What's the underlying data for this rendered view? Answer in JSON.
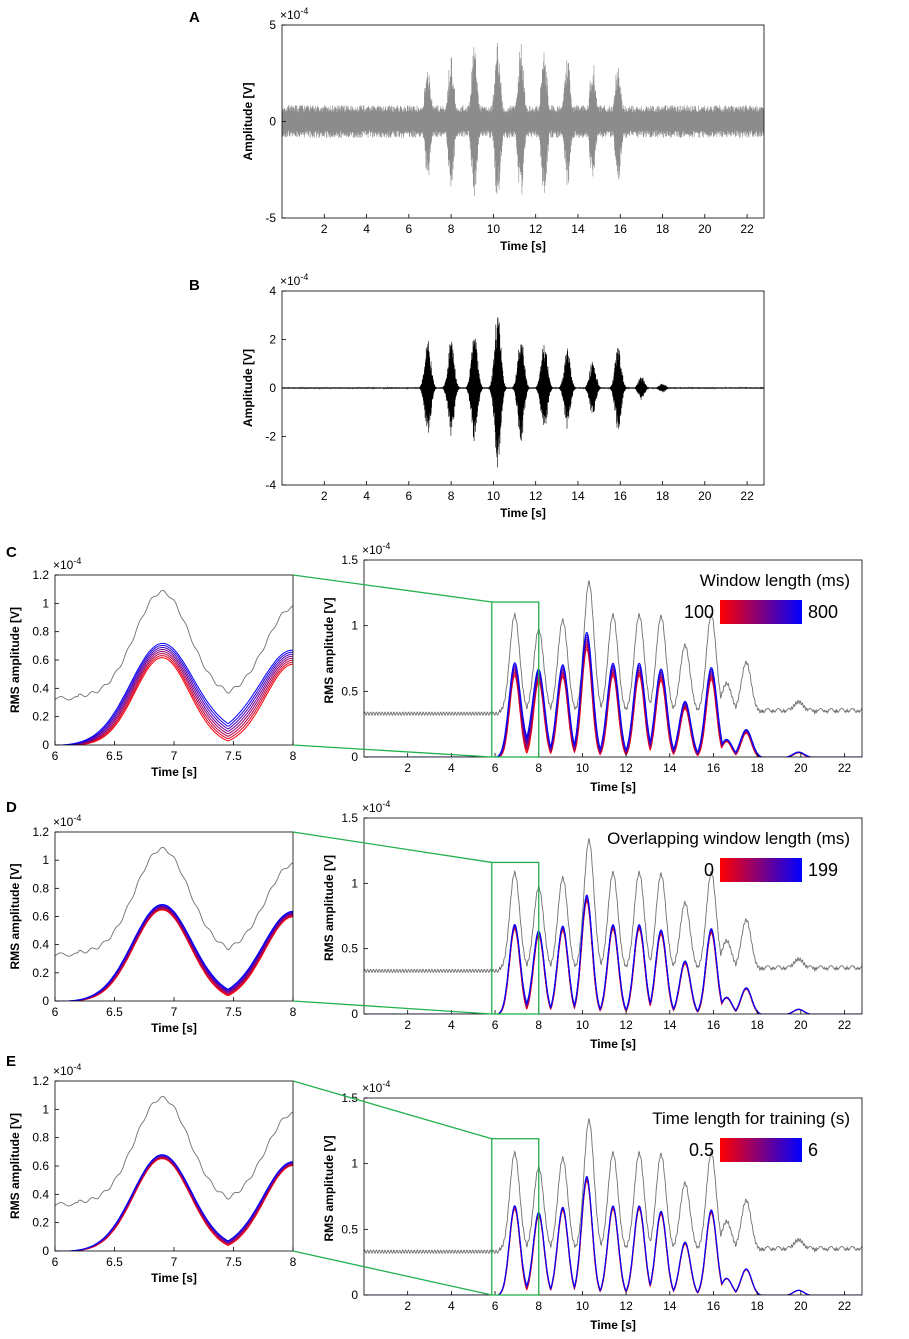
{
  "chart_data": [
    {
      "id": "A",
      "panel_label": "A",
      "type": "line",
      "title": "",
      "xlabel": "Time [s]",
      "ylabel": "Amplitude [V]",
      "exponent": "×10",
      "exponent_power": "-4",
      "xlim": [
        0,
        22.8
      ],
      "ylim": [
        -5,
        5
      ],
      "xticks": [
        2,
        4,
        6,
        8,
        10,
        12,
        14,
        16,
        18,
        20,
        22
      ],
      "yticks": [
        -5,
        0,
        5
      ],
      "ytick_labels": [
        "-5",
        "0",
        "5"
      ],
      "color": "#8c8c8c",
      "noise_floor": 0.85,
      "bursts": [
        {
          "t": 6.9,
          "amp": 3.1
        },
        {
          "t": 8.0,
          "amp": 3.5
        },
        {
          "t": 9.1,
          "amp": 3.9
        },
        {
          "t": 10.2,
          "amp": 4.3
        },
        {
          "t": 11.3,
          "amp": 4.1
        },
        {
          "t": 12.4,
          "amp": 3.9
        },
        {
          "t": 13.5,
          "amp": 3.4
        },
        {
          "t": 14.7,
          "amp": 3.2
        },
        {
          "t": 15.9,
          "amp": 3.3
        }
      ]
    },
    {
      "id": "B",
      "panel_label": "B",
      "type": "line",
      "title": "",
      "xlabel": "Time [s]",
      "ylabel": "Amplitude [V]",
      "exponent": "×10",
      "exponent_power": "-4",
      "xlim": [
        0,
        22.8
      ],
      "ylim": [
        -4,
        4
      ],
      "xticks": [
        2,
        4,
        6,
        8,
        10,
        12,
        14,
        16,
        18,
        20,
        22
      ],
      "yticks": [
        -4,
        -2,
        0,
        2,
        4
      ],
      "ytick_labels": [
        "-4",
        "-2",
        "0",
        "2",
        "4"
      ],
      "color": "#000000",
      "noise_floor": 0.03,
      "bursts": [
        {
          "t": 6.9,
          "amp": 2.0
        },
        {
          "t": 8.0,
          "amp": 2.0
        },
        {
          "t": 9.1,
          "amp": 2.3
        },
        {
          "t": 10.2,
          "amp": 3.3
        },
        {
          "t": 11.3,
          "amp": 2.3
        },
        {
          "t": 12.4,
          "amp": 2.0
        },
        {
          "t": 13.5,
          "amp": 1.7
        },
        {
          "t": 14.7,
          "amp": 1.2
        },
        {
          "t": 15.9,
          "amp": 1.8
        },
        {
          "t": 17.0,
          "amp": 0.5
        },
        {
          "t": 18.0,
          "amp": 0.2
        }
      ]
    },
    {
      "id": "C",
      "panel_label": "C",
      "type": "line",
      "xlabel": "Time [s]",
      "ylabel": "RMS amplitude [V]",
      "exponent": "×10",
      "exponent_power": "-4",
      "legend_title": "Window length (ms)",
      "legend_min": "100",
      "legend_max": "800",
      "color_scale": [
        "#ff0000",
        "#0000ff"
      ],
      "series_count": 8,
      "spread": 0.9,
      "zoom": {
        "xlim": [
          6,
          8
        ],
        "ylim": [
          0,
          1.2
        ],
        "xticks": [
          6,
          6.5,
          7,
          7.5,
          8
        ],
        "xtick_labels": [
          "6",
          "6.5",
          "7",
          "7.5",
          "8"
        ],
        "yticks": [
          0,
          0.2,
          0.4,
          0.6,
          0.8,
          1,
          1.2
        ],
        "ytick_labels": [
          "0",
          "0.2",
          "0.4",
          "0.6",
          "0.8",
          "1",
          "1.2"
        ]
      },
      "main": {
        "xlim": [
          0,
          22.8
        ],
        "ylim": [
          0,
          1.5
        ],
        "xticks": [
          2,
          4,
          6,
          8,
          10,
          12,
          14,
          16,
          18,
          20,
          22
        ],
        "yticks": [
          0,
          0.5,
          1,
          1.5
        ],
        "ytick_labels": [
          "0",
          "0.5",
          "1",
          "1.5"
        ],
        "zoom_box": {
          "x0": 5.85,
          "x1": 8.0,
          "y0": 0,
          "y1": 1.18
        }
      }
    },
    {
      "id": "D",
      "panel_label": "D",
      "type": "line",
      "xlabel": "Time [s]",
      "ylabel": "RMS amplitude [V]",
      "exponent": "×10",
      "exponent_power": "-4",
      "legend_title": "Overlapping window length (ms)",
      "legend_min": "0",
      "legend_max": "199",
      "color_scale": [
        "#ff0000",
        "#0000ff"
      ],
      "series_count": 8,
      "spread": 0.35,
      "zoom": {
        "xlim": [
          6,
          8
        ],
        "ylim": [
          0,
          1.2
        ],
        "xticks": [
          6,
          6.5,
          7,
          7.5,
          8
        ],
        "xtick_labels": [
          "6",
          "6.5",
          "7",
          "7.5",
          "8"
        ],
        "yticks": [
          0,
          0.2,
          0.4,
          0.6,
          0.8,
          1,
          1.2
        ],
        "ytick_labels": [
          "0",
          "0.2",
          "0.4",
          "0.6",
          "0.8",
          "1",
          "1.2"
        ]
      },
      "main": {
        "xlim": [
          0,
          22.8
        ],
        "ylim": [
          0,
          1.5
        ],
        "xticks": [
          2,
          4,
          6,
          8,
          10,
          12,
          14,
          16,
          18,
          20,
          22
        ],
        "yticks": [
          0,
          0.5,
          1,
          1.5
        ],
        "ytick_labels": [
          "0",
          "0.5",
          "1",
          "1.5"
        ],
        "zoom_box": {
          "x0": 5.85,
          "x1": 8.0,
          "y0": 0,
          "y1": 1.16
        }
      }
    },
    {
      "id": "E",
      "panel_label": "E",
      "type": "line",
      "xlabel": "Time [s]",
      "ylabel": "RMS amplitude [V]",
      "exponent": "×10",
      "exponent_power": "-4",
      "legend_title": "Time length for training (s)",
      "legend_min": "0.5",
      "legend_max": "6",
      "color_scale": [
        "#ff0000",
        "#0000ff"
      ],
      "series_count": 6,
      "spread": 0.25,
      "zoom": {
        "xlim": [
          6,
          8
        ],
        "ylim": [
          0,
          1.2
        ],
        "xticks": [
          6,
          6.5,
          7,
          7.5,
          8
        ],
        "xtick_labels": [
          "6",
          "6.5",
          "7",
          "7.5",
          "8"
        ],
        "yticks": [
          0,
          0.2,
          0.4,
          0.6,
          0.8,
          1,
          1.2
        ],
        "ytick_labels": [
          "0",
          "0.2",
          "0.4",
          "0.6",
          "0.8",
          "1",
          "1.2"
        ]
      },
      "main": {
        "xlim": [
          0,
          22.8
        ],
        "ylim": [
          0,
          1.5
        ],
        "xticks": [
          2,
          4,
          6,
          8,
          10,
          12,
          14,
          16,
          18,
          20,
          22
        ],
        "yticks": [
          0,
          0.5,
          1,
          1.5
        ],
        "ytick_labels": [
          "0",
          "0.5",
          "1",
          "1.5"
        ],
        "zoom_box": {
          "x0": 5.85,
          "x1": 8.0,
          "y0": 0,
          "y1": 1.19
        }
      }
    }
  ],
  "rms_reference": {
    "color": "#707070",
    "baseline": 0.34,
    "peaks": [
      {
        "t": 6.9,
        "v": 1.08
      },
      {
        "t": 8.0,
        "v": 0.97
      },
      {
        "t": 9.1,
        "v": 1.04
      },
      {
        "t": 10.3,
        "v": 1.33
      },
      {
        "t": 11.4,
        "v": 1.08
      },
      {
        "t": 12.6,
        "v": 1.08
      },
      {
        "t": 13.6,
        "v": 1.07
      },
      {
        "t": 14.7,
        "v": 0.85
      },
      {
        "t": 15.9,
        "v": 1.08
      },
      {
        "t": 16.6,
        "v": 0.56
      },
      {
        "t": 17.5,
        "v": 0.72
      },
      {
        "t": 19.9,
        "v": 0.42
      }
    ]
  },
  "rms_estimate": {
    "peaks": [
      {
        "t": 6.9,
        "v": 0.67
      },
      {
        "t": 8.0,
        "v": 0.62
      },
      {
        "t": 9.1,
        "v": 0.66
      },
      {
        "t": 10.2,
        "v": 0.89
      },
      {
        "t": 11.4,
        "v": 0.67
      },
      {
        "t": 12.6,
        "v": 0.67
      },
      {
        "t": 13.6,
        "v": 0.63
      },
      {
        "t": 14.7,
        "v": 0.4
      },
      {
        "t": 15.9,
        "v": 0.64
      },
      {
        "t": 16.6,
        "v": 0.13
      },
      {
        "t": 17.5,
        "v": 0.2
      },
      {
        "t": 19.9,
        "v": 0.04
      }
    ]
  },
  "zoom_connector_color": "#22b14c"
}
